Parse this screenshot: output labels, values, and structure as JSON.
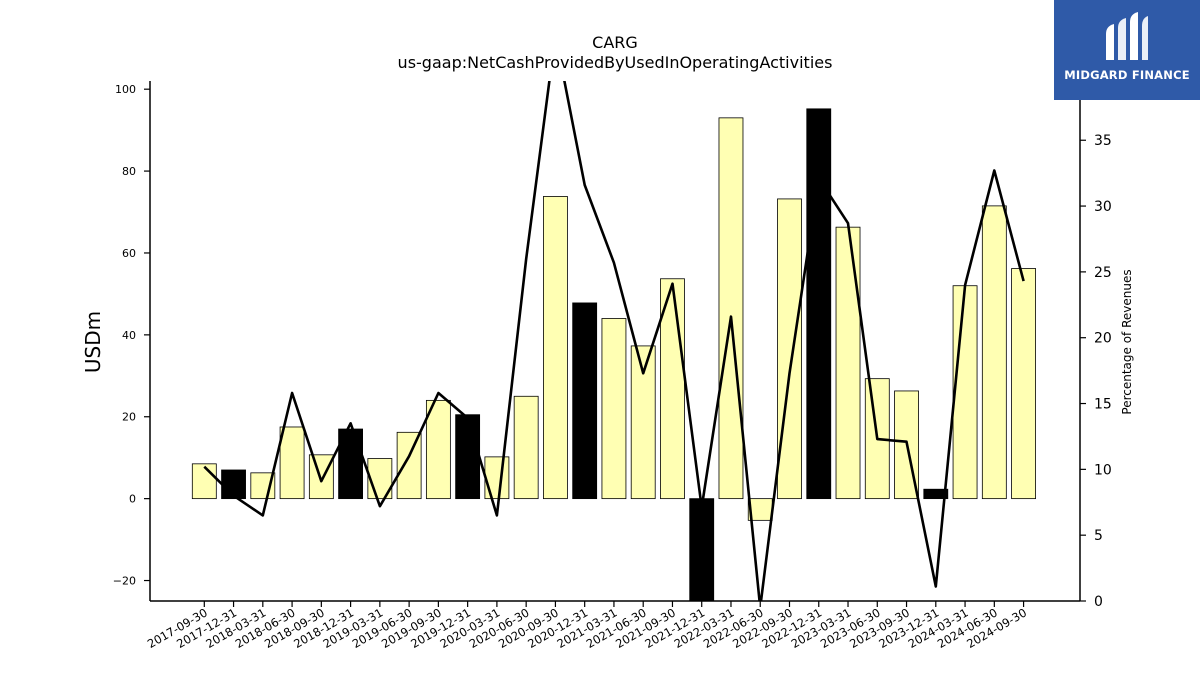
{
  "chart_data": {
    "type": "bar+line",
    "title": "CARG",
    "subtitle": "us-gaap:NetCashProvidedByUsedInOperatingActivities",
    "ylabel": "USDm",
    "y2label": "Percentage of Revenues",
    "ylim": [
      -25,
      102
    ],
    "y2lim": [
      0,
      39.5
    ],
    "yticks": [
      -20,
      0,
      20,
      40,
      60,
      80,
      100
    ],
    "y2ticks": [
      0,
      5,
      10,
      15,
      20,
      25,
      30,
      35
    ],
    "categories": [
      "2017-09-30",
      "2017-12-31",
      "2018-03-31",
      "2018-06-30",
      "2018-09-30",
      "2018-12-31",
      "2019-03-31",
      "2019-06-30",
      "2019-09-30",
      "2019-12-31",
      "2020-03-31",
      "2020-06-30",
      "2020-09-30",
      "2020-12-31",
      "2021-03-31",
      "2021-06-30",
      "2021-09-30",
      "2021-12-31",
      "2022-03-31",
      "2022-06-30",
      "2022-09-30",
      "2022-12-31",
      "2023-03-31",
      "2023-06-30",
      "2023-09-30",
      "2023-12-31",
      "2024-03-31",
      "2024-06-30",
      "2024-09-30"
    ],
    "bar_values": [
      8.5,
      7.0,
      6.3,
      17.5,
      10.7,
      17.0,
      9.8,
      16.2,
      24.0,
      20.5,
      10.2,
      25.0,
      73.8,
      47.8,
      44.0,
      37.3,
      53.7,
      -27.0,
      93.0,
      -5.3,
      73.2,
      95.2,
      66.3,
      29.3,
      26.3,
      2.3,
      52.0,
      71.5,
      56.2
    ],
    "bar_q4": [
      false,
      true,
      false,
      false,
      false,
      true,
      false,
      false,
      false,
      true,
      false,
      false,
      false,
      true,
      false,
      false,
      false,
      true,
      false,
      false,
      false,
      true,
      false,
      false,
      false,
      true,
      false,
      false,
      false
    ],
    "line_values": [
      10.2,
      8.0,
      6.5,
      15.8,
      9.1,
      13.5,
      7.2,
      11.0,
      15.8,
      13.9,
      6.5,
      26.0,
      43.0,
      31.6,
      25.7,
      17.3,
      24.1,
      7.1,
      21.6,
      -0.5,
      17.3,
      32.1,
      28.7,
      12.3,
      12.1,
      1.1,
      24.0,
      32.7,
      24.3
    ],
    "colors": {
      "bar": "#ffffb3",
      "bar_q4": "#000000",
      "line": "#000000"
    }
  },
  "logo": {
    "text": "MIDGARD FINANCE"
  }
}
